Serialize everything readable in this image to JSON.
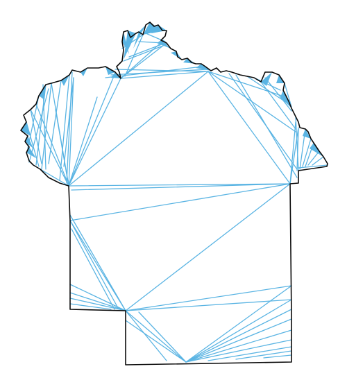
{
  "map": {
    "kind": "polygon-triangulation",
    "colors": {
      "background": "#ffffff",
      "boundary": "#0b0b0b",
      "triangulation": "#5ab4e3"
    }
  }
}
